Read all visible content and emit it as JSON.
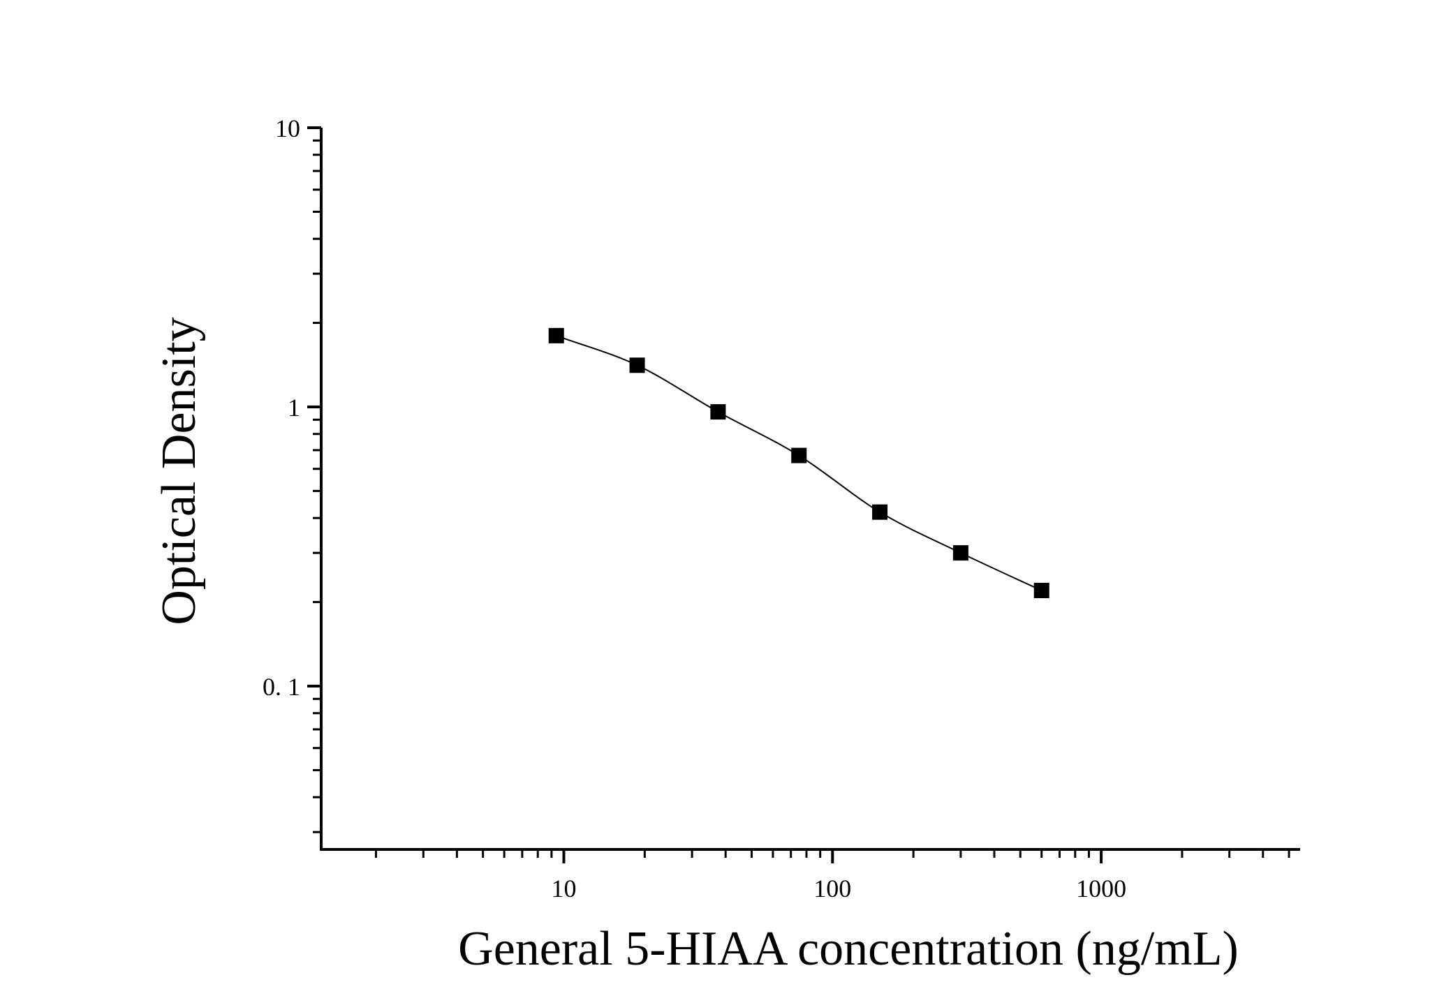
{
  "chart_data": {
    "type": "scatter",
    "title": "",
    "xlabel": "General 5-HIAA concentration (ng/mL)",
    "ylabel": "Optical Density",
    "x_scale": "log",
    "y_scale": "log",
    "xlim": [
      1.25,
      5500
    ],
    "ylim": [
      0.026,
      10
    ],
    "x_ticks": [
      {
        "value": 10,
        "label": "10"
      },
      {
        "value": 100,
        "label": "100"
      },
      {
        "value": 1000,
        "label": "1000"
      }
    ],
    "y_ticks": [
      {
        "value": 10,
        "label": "10"
      },
      {
        "value": 1,
        "label": "1"
      },
      {
        "value": 0.1,
        "label": "0. 1"
      }
    ],
    "grid": false,
    "legend": "none",
    "marker_color": "#000000",
    "series": [
      {
        "marker": "square",
        "fit_line": true,
        "points": [
          {
            "x": 9.375,
            "y": 1.8
          },
          {
            "x": 18.75,
            "y": 1.41
          },
          {
            "x": 37.5,
            "y": 0.96
          },
          {
            "x": 75,
            "y": 0.67
          },
          {
            "x": 150,
            "y": 0.42
          },
          {
            "x": 300,
            "y": 0.3
          },
          {
            "x": 600,
            "y": 0.22
          }
        ]
      }
    ]
  }
}
